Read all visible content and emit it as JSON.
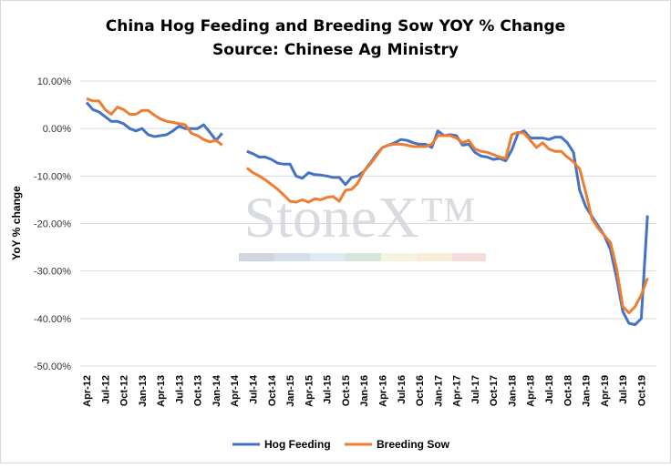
{
  "chart_data": {
    "type": "line",
    "title": "China Hog Feeding and Breeding Sow YOY % Change",
    "subtitle": "Source: Chinese Ag Ministry",
    "y_label": "YoY % change",
    "watermark": "StoneX™",
    "categories": [
      "Apr-12",
      null,
      null,
      "Jul-12",
      null,
      null,
      "Oct-12",
      null,
      null,
      "Jan-13",
      null,
      null,
      "Apr-13",
      null,
      null,
      "Jul-13",
      null,
      null,
      "Oct-13",
      null,
      null,
      "Jan-14",
      null,
      null,
      "Apr-14",
      null,
      null,
      "Jul-14",
      null,
      null,
      "Oct-14",
      null,
      null,
      "Jan-15",
      null,
      null,
      "Apr-15",
      null,
      null,
      "Jul-15",
      null,
      null,
      "Oct-15",
      null,
      null,
      "Jan-16",
      null,
      null,
      "Apr-16",
      null,
      null,
      "Jul-16",
      null,
      null,
      "Oct-16",
      null,
      null,
      "Jan-17",
      null,
      null,
      "Apr-17",
      null,
      null,
      "Jul-17",
      null,
      null,
      "Oct-17",
      null,
      null,
      "Jan-18",
      null,
      null,
      "Apr-18",
      null,
      null,
      "Jul-18",
      null,
      null,
      "Oct-18",
      null,
      null,
      "Jan-19",
      null,
      null,
      "Apr-19",
      null,
      null,
      "Jul-19",
      null,
      null,
      "Oct-19",
      null
    ],
    "series": [
      {
        "name": "Hog Feeding",
        "color": "#4472c4",
        "values": [
          5.5,
          4.0,
          3.5,
          2.5,
          1.5,
          1.5,
          1.0,
          0,
          -0.5,
          0,
          -1.3,
          -1.7,
          -1.5,
          -1.3,
          -0.5,
          0.5,
          0,
          0,
          0,
          0.8,
          -0.8,
          -2.5,
          -1.0,
          null,
          null,
          null,
          -4.8,
          -5.3,
          -6.0,
          -6.0,
          -6.5,
          -7.3,
          -7.5,
          -7.5,
          -10.0,
          -10.5,
          -9.3,
          -9.7,
          -9.8,
          -10.0,
          -10.3,
          -10.3,
          -11.8,
          -10.3,
          -10.0,
          -9.0,
          -7.3,
          -5.5,
          -4.0,
          -3.5,
          -3.0,
          -2.3,
          -2.5,
          -3.0,
          -3.3,
          -3.3,
          -4.0,
          -0.5,
          -1.5,
          -1.3,
          -1.5,
          -3.5,
          -3.3,
          -5.0,
          -5.8,
          -6.0,
          -6.5,
          -6.3,
          -6.8,
          -4.5,
          -1.0,
          -0.5,
          -2.0,
          -2.0,
          -2.0,
          -2.3,
          -1.8,
          -1.8,
          -3.0,
          -5.0,
          -13.0,
          -16.5,
          -18.5,
          -20.5,
          -22.5,
          -25.5,
          -31.5,
          -38.5,
          -41.0,
          -41.3,
          -40.0,
          -18.3
        ]
      },
      {
        "name": "Breeding Sow",
        "color": "#ed7d31",
        "values": [
          6.3,
          5.8,
          5.8,
          4.0,
          3.0,
          4.5,
          4.0,
          3.0,
          3.0,
          3.8,
          3.8,
          2.8,
          2.0,
          1.5,
          1.3,
          1.0,
          0.8,
          -1.0,
          -1.5,
          -2.3,
          -2.8,
          -2.5,
          -3.5,
          null,
          null,
          null,
          -8.3,
          -9.3,
          -10.0,
          -10.8,
          -11.8,
          -12.8,
          -14.0,
          -15.3,
          -15.5,
          -15.0,
          -15.5,
          -14.8,
          -15.0,
          -14.5,
          -14.3,
          -15.3,
          -13.0,
          -12.8,
          -11.5,
          -9.0,
          -7.5,
          -5.8,
          -4.0,
          -3.5,
          -3.3,
          -3.3,
          -3.5,
          -3.8,
          -3.8,
          -3.8,
          -3.3,
          -1.5,
          -1.5,
          -1.5,
          -2.0,
          -3.0,
          -2.5,
          -4.3,
          -4.8,
          -5.0,
          -5.5,
          -6.0,
          -6.3,
          -1.3,
          -0.8,
          -1.0,
          -2.5,
          -4.0,
          -3.0,
          -4.3,
          -4.8,
          -4.8,
          -6.0,
          -7.0,
          -8.5,
          -13.5,
          -19.0,
          -21.0,
          -22.5,
          -24.0,
          -29.5,
          -37.5,
          -38.8,
          -37.5,
          -35.0,
          -31.5
        ]
      }
    ],
    "ylim": [
      -50,
      10
    ],
    "yticks": [
      {
        "value": -50,
        "label": "-50.00%"
      },
      {
        "value": -40,
        "label": "-40.00%"
      },
      {
        "value": -30,
        "label": "-30.00%"
      },
      {
        "value": -20,
        "label": "-20.00%"
      },
      {
        "value": -10,
        "label": "-10.00%"
      },
      {
        "value": 0,
        "label": "0.00%"
      },
      {
        "value": 10,
        "label": "10.00%"
      }
    ],
    "grid": true,
    "legend": "bottom"
  }
}
